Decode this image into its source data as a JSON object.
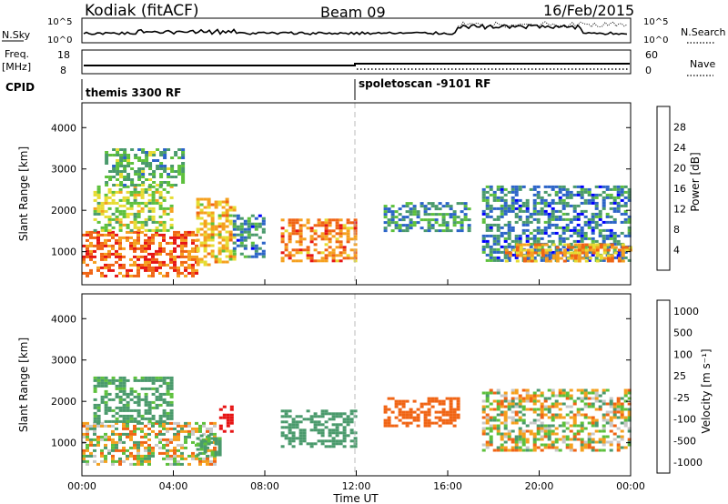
{
  "header": {
    "station": "Kodiak (fitACF)",
    "beam": "Beam 09",
    "date": "16/Feb/2015"
  },
  "strips": {
    "nsky_label": "N.Sky",
    "nsky_ticks": [
      "10^5",
      "10^0"
    ],
    "nsearch_label": "N.Search",
    "nsearch_ticks": [
      "10^5",
      "10^0"
    ],
    "freq_label": "Freq.",
    "freq_unit": "[MHz]",
    "freq_ticks": [
      "18",
      "8"
    ],
    "nave_label": "Nave",
    "nave_ticks": [
      "60",
      "0"
    ],
    "cpid_label": "CPID",
    "cpid_segments": [
      "themis 3300 RF",
      "spoletoscan -9101 RF"
    ]
  },
  "chart_data": [
    {
      "type": "heatmap",
      "name": "power",
      "ylabel": "Slant Range [km]",
      "ylim": [
        200,
        4600
      ],
      "yticks": [
        1000,
        2000,
        3000,
        4000
      ],
      "xlim": [
        0,
        24
      ],
      "colorbar": {
        "label": "Power [dB]",
        "ticks": [
          4,
          8,
          12,
          16,
          20,
          24,
          28
        ],
        "colors": [
          "#0000ff",
          "#2c64c8",
          "#4a9a6c",
          "#5dc03c",
          "#e6dc32",
          "#f5a01e",
          "#f06414",
          "#e61414"
        ]
      },
      "echo_regions": [
        {
          "t_start": 0.0,
          "t_end": 5.0,
          "range_min": 400,
          "range_max": 1500,
          "level_db": 26
        },
        {
          "t_start": 0.5,
          "t_end": 4.0,
          "range_min": 1500,
          "range_max": 2600,
          "level_db": 16
        },
        {
          "t_start": 1.0,
          "t_end": 4.5,
          "range_min": 2600,
          "range_max": 3500,
          "level_db": 12
        },
        {
          "t_start": 5.0,
          "t_end": 6.6,
          "range_min": 700,
          "range_max": 2300,
          "level_db": 20
        },
        {
          "t_start": 6.6,
          "t_end": 8.0,
          "range_min": 900,
          "range_max": 1900,
          "level_db": 8
        },
        {
          "t_start": 8.7,
          "t_end": 12.0,
          "range_min": 800,
          "range_max": 1800,
          "level_db": 24
        },
        {
          "t_start": 13.2,
          "t_end": 17.0,
          "range_min": 1500,
          "range_max": 2200,
          "level_db": 10
        },
        {
          "t_start": 17.5,
          "t_end": 24.0,
          "range_min": 800,
          "range_max": 2600,
          "level_db": 8
        },
        {
          "t_start": 18.5,
          "t_end": 24.0,
          "range_min": 800,
          "range_max": 1200,
          "level_db": 22
        }
      ]
    },
    {
      "type": "heatmap",
      "name": "velocity",
      "ylabel": "Slant Range [km]",
      "ylim": [
        200,
        4600
      ],
      "yticks": [
        1000,
        2000,
        3000,
        4000
      ],
      "xlim": [
        0,
        24
      ],
      "xlabel": "Time UT",
      "xticks": [
        "00:00",
        "04:00",
        "08:00",
        "12:00",
        "16:00",
        "20:00",
        "00:00"
      ],
      "colorbar": {
        "label": "Velocity [m s⁻¹]",
        "ticks": [
          1000,
          500,
          100,
          25,
          -25,
          -100,
          -500,
          -1000
        ],
        "colors": [
          "#0000ff",
          "#2c64c8",
          "#4a9a6c",
          "#5dc03c",
          "#c8c8c8",
          "#f5a01e",
          "#f06414",
          "#e61414"
        ]
      },
      "echo_regions": [
        {
          "t_start": 0.0,
          "t_end": 5.8,
          "range_min": 500,
          "range_max": 1500,
          "velocity": 0
        },
        {
          "t_start": 0.5,
          "t_end": 4.0,
          "range_min": 1500,
          "range_max": 2600,
          "velocity": 200
        },
        {
          "t_start": 5.0,
          "t_end": 6.0,
          "range_min": 700,
          "range_max": 1200,
          "velocity": 200
        },
        {
          "t_start": 6.0,
          "t_end": 6.6,
          "range_min": 1300,
          "range_max": 1900,
          "velocity": -800
        },
        {
          "t_start": 8.7,
          "t_end": 12.0,
          "range_min": 900,
          "range_max": 1800,
          "velocity": 300
        },
        {
          "t_start": 13.2,
          "t_end": 16.5,
          "range_min": 1400,
          "range_max": 2100,
          "velocity": -300
        },
        {
          "t_start": 17.5,
          "t_end": 24.0,
          "range_min": 800,
          "range_max": 2300,
          "velocity": 0
        }
      ]
    }
  ]
}
